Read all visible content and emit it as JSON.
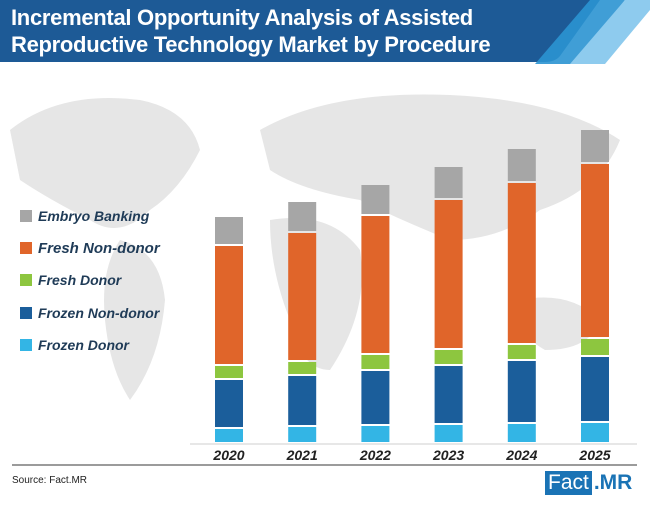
{
  "header": {
    "title_line1": "Incremental Opportunity Analysis of Assisted",
    "title_line2": "Reproductive Technology Market by Procedure"
  },
  "footer": {
    "source": "Source: Fact.MR",
    "logo_part1": "Fact",
    "logo_part2": ".MR"
  },
  "colors": {
    "header": "#1d5a96",
    "embryo": "#a6a6a6",
    "fresh_non_donor": "#e0652a",
    "fresh_donor": "#8dc63f",
    "frozen_non_donor": "#1b5e9b",
    "frozen_donor": "#33b5e5"
  },
  "chart_data": {
    "type": "bar",
    "stacked": true,
    "title": "Incremental Opportunity Analysis of Assisted Reproductive Technology Market by Procedure",
    "xlabel": "",
    "ylabel": "",
    "note": "No y-axis shown; values are relative units estimated from bar heights",
    "ylim": [
      0,
      320
    ],
    "categories": [
      "2020",
      "2021",
      "2022",
      "2023",
      "2024",
      "2025"
    ],
    "legend_position": "left",
    "series": [
      {
        "name": "Frozen Donor",
        "color": "#33b5e5",
        "values": [
          15,
          17,
          18,
          19,
          20,
          21
        ]
      },
      {
        "name": "Frozen Non-donor",
        "color": "#1b5e9b",
        "values": [
          49,
          51,
          55,
          59,
          63,
          66
        ]
      },
      {
        "name": "Fresh Donor",
        "color": "#8dc63f",
        "values": [
          14,
          14,
          16,
          16,
          16,
          18
        ]
      },
      {
        "name": "Fresh Non-donor",
        "color": "#e0652a",
        "values": [
          120,
          129,
          139,
          150,
          162,
          175
        ]
      },
      {
        "name": "Embryo Banking",
        "color": "#a6a6a6",
        "values": [
          29,
          31,
          31,
          33,
          34,
          34
        ]
      }
    ],
    "legend": [
      "Embryo Banking",
      "Fresh Non-donor",
      "Fresh Donor",
      "Frozen Non-donor",
      "Frozen Donor"
    ]
  }
}
